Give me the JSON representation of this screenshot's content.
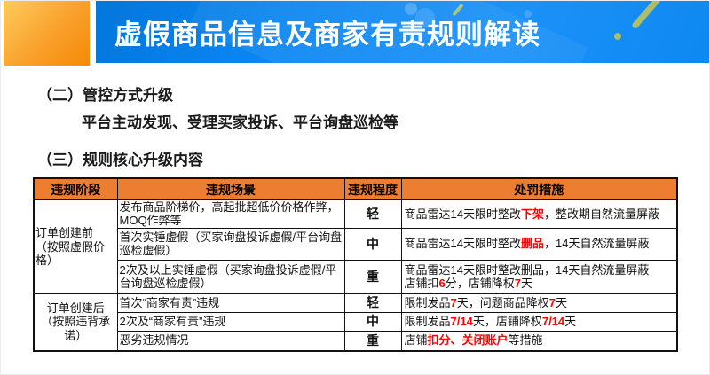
{
  "slide": {
    "title": "虚假商品信息及商家有责规则解读",
    "section2_label": "（二）管控方式升级",
    "section2_detail": "平台主动发现、受理买家投诉、平台询盘巡检等",
    "section3_label": "（三）规则核心升级内容"
  },
  "colors": {
    "banner_blue": "#0b86f2",
    "block_orange": "#f68a06",
    "table_header_orange": "#ed7d31",
    "highlight_red": "#ff0000"
  },
  "table": {
    "headers": [
      "违规阶段",
      "违规场景",
      "违规程度",
      "处罚措施"
    ],
    "groups": [
      {
        "stage": "订单创建前\n（按照虚假价\n格）",
        "rows": [
          {
            "scene": "发布商品阶梯价，高起批超低价价格作弊，MOQ作弊等",
            "grade": "轻",
            "punishment": [
              {
                "t": "商品雷达14天限时整改"
              },
              {
                "t": "下架",
                "red": true
              },
              {
                "t": "，整改期自然流量屏蔽"
              }
            ]
          },
          {
            "scene": "首次实锤虚假（买家询盘投诉虚假/平台询盘巡检虚假）",
            "grade": "中",
            "punishment": [
              {
                "t": "商品雷达14天限时整改"
              },
              {
                "t": "删品",
                "red": true
              },
              {
                "t": "，14天自然流量屏蔽"
              }
            ]
          },
          {
            "scene": "2次及以上实锤虚假（买家询盘投诉虚假/平台询盘巡检虚假）",
            "grade": "重",
            "punishment": [
              {
                "t": "商品雷达14天限时整改删品，14天自然流量屏蔽\n店铺扣"
              },
              {
                "t": "6",
                "red": true
              },
              {
                "t": "分，店铺降权"
              },
              {
                "t": "7",
                "red": true
              },
              {
                "t": "天"
              }
            ]
          }
        ]
      },
      {
        "stage": "订单创建后\n（按照违背承\n诺）",
        "rows": [
          {
            "scene": "首次“商家有责”违规",
            "grade": "轻",
            "punishment": [
              {
                "t": "限制发品"
              },
              {
                "t": "7",
                "red": true
              },
              {
                "t": "天，问题商品降权"
              },
              {
                "t": "7",
                "red": true
              },
              {
                "t": "天"
              }
            ]
          },
          {
            "scene": "2次及“商家有责”违规",
            "grade": "中",
            "punishment": [
              {
                "t": "限制发品"
              },
              {
                "t": "7/14",
                "red": true
              },
              {
                "t": "天，店铺降权"
              },
              {
                "t": "7/14",
                "red": true
              },
              {
                "t": "天"
              }
            ]
          },
          {
            "scene": "恶劣违规情况",
            "grade": "重",
            "punishment": [
              {
                "t": "店铺"
              },
              {
                "t": "扣分、关闭账户",
                "red": true
              },
              {
                "t": "等措施"
              }
            ]
          }
        ]
      }
    ]
  }
}
